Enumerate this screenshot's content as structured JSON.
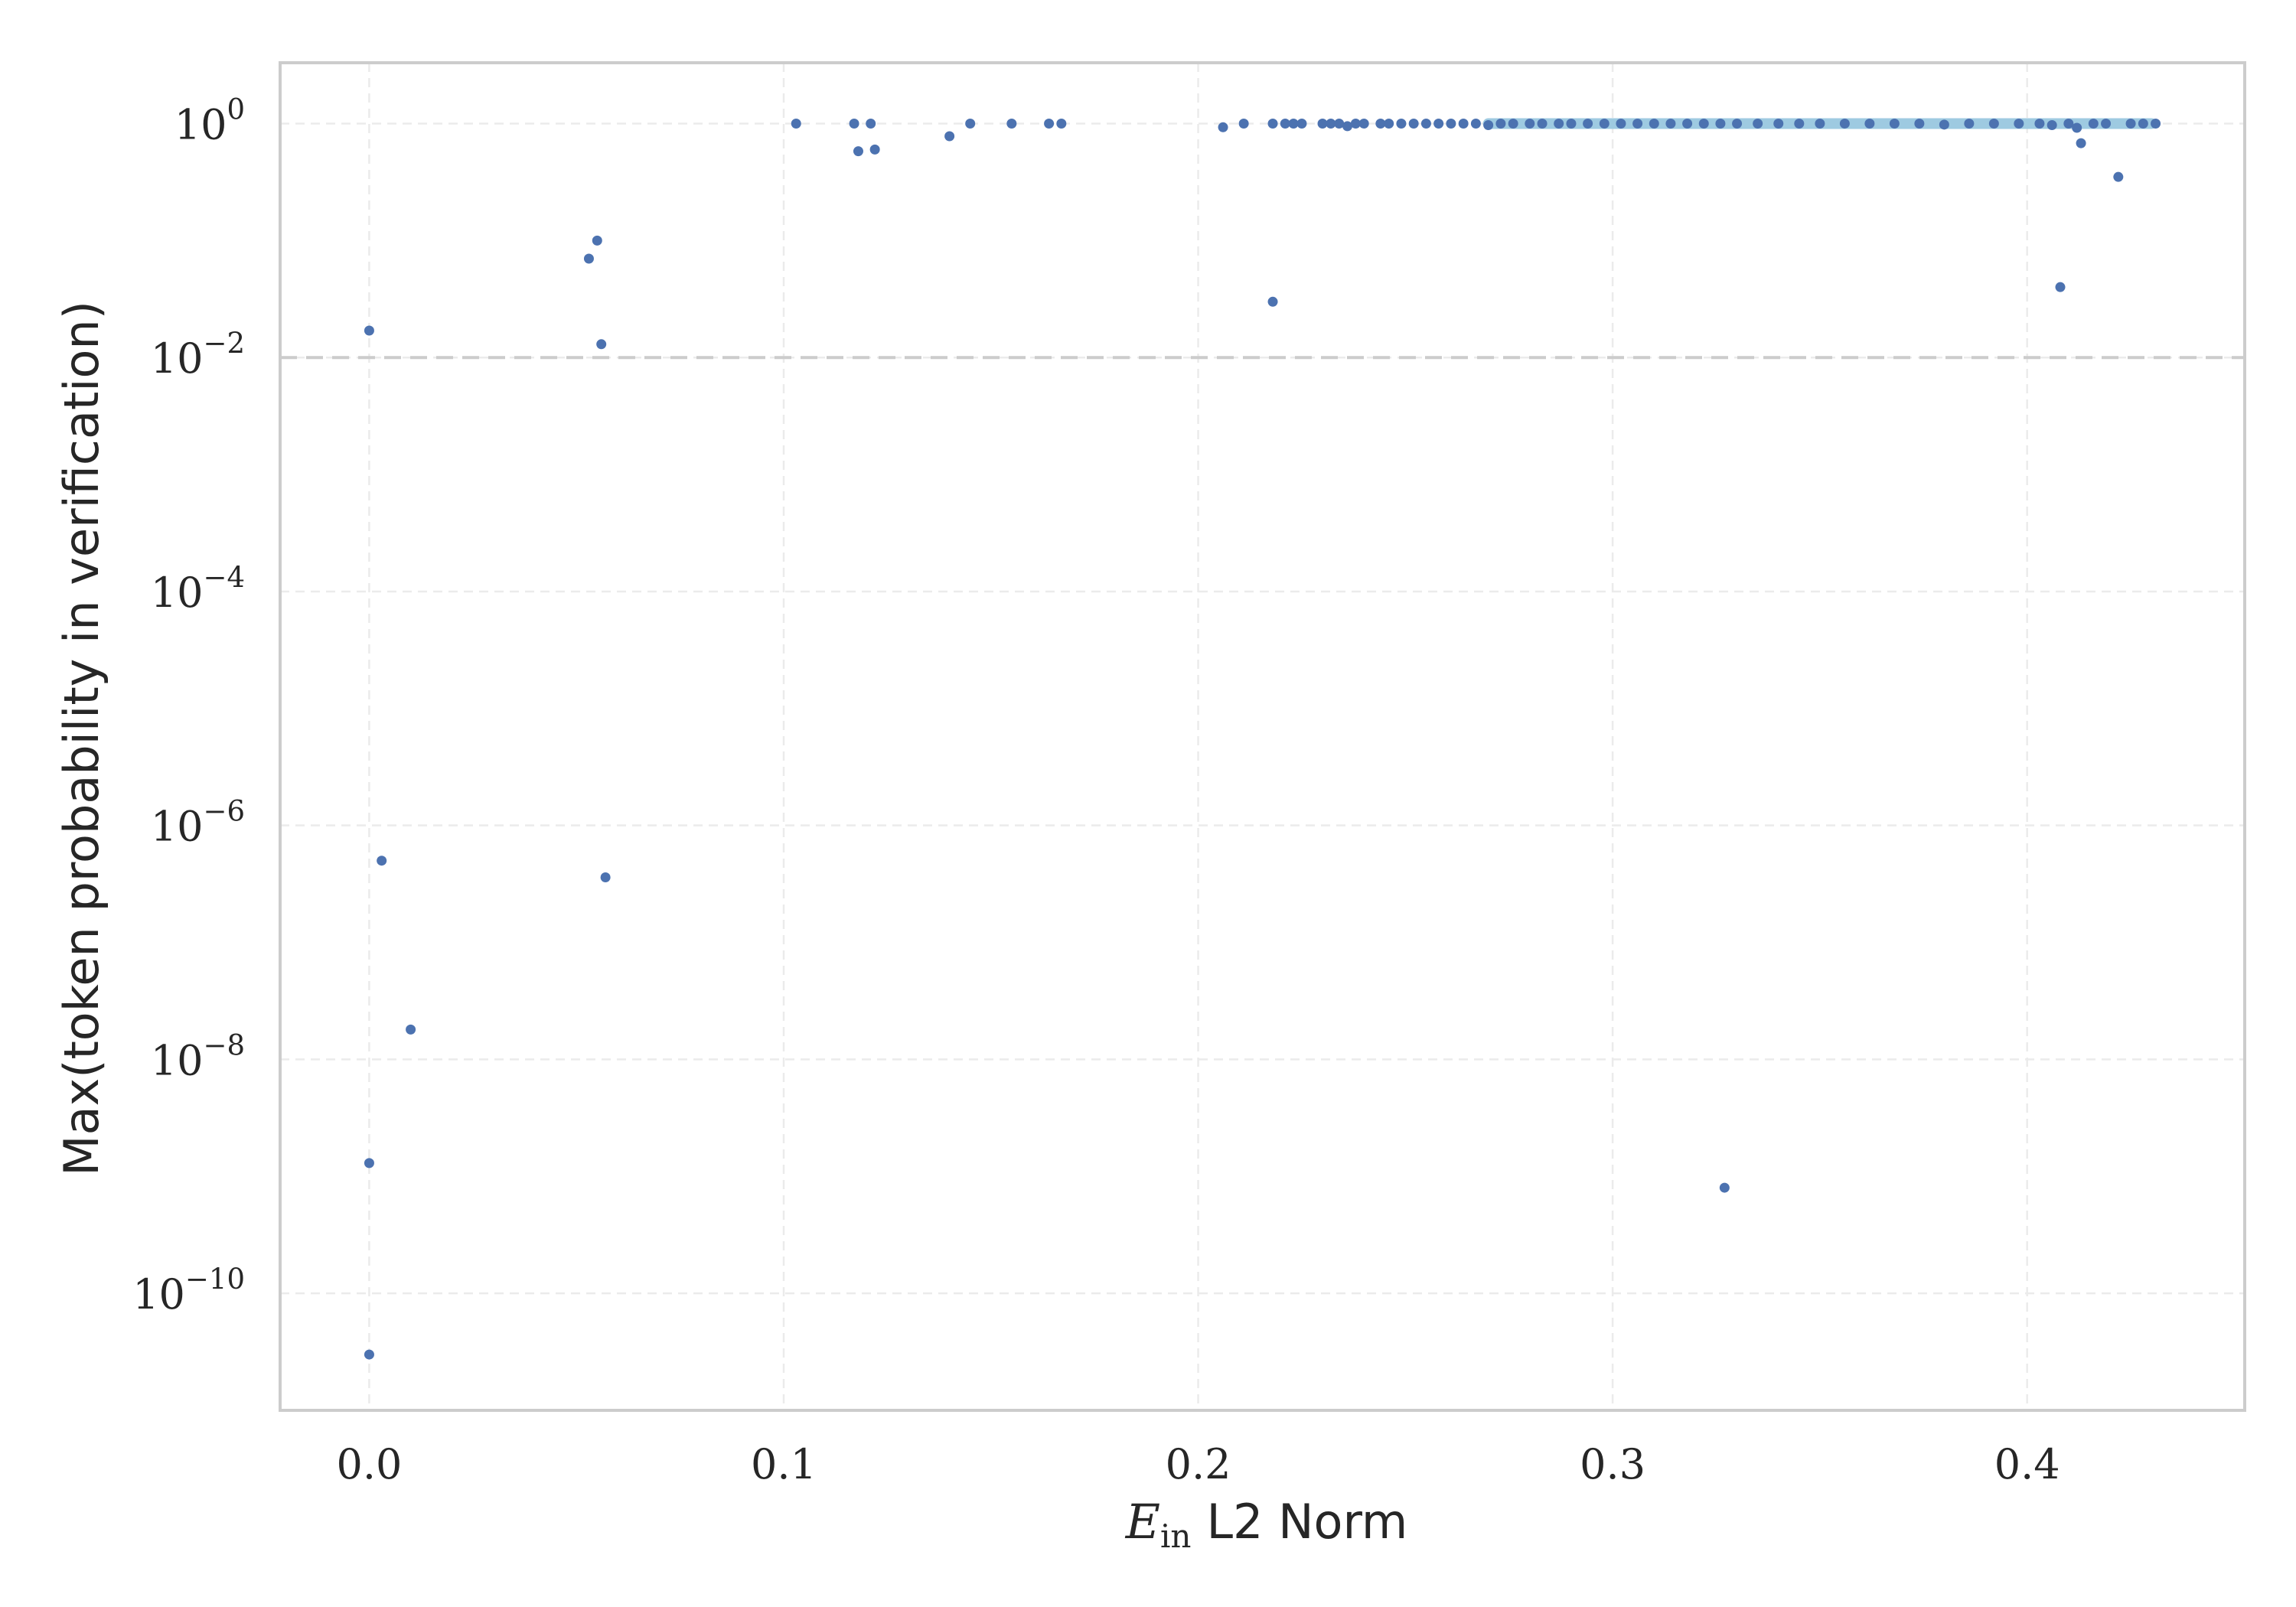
{
  "chart_data": {
    "type": "scatter",
    "title": "",
    "xlabel_math": "E",
    "xlabel_sub": "in",
    "xlabel_text": "L2 Norm",
    "ylabel": "Max(token probability in verification)",
    "xlim": [
      -0.0215,
      0.4525
    ],
    "ylim_log10": [
      -11.0,
      0.52
    ],
    "yscale": "log",
    "grid": true,
    "x_ticks": [
      "0.0",
      "0.1",
      "0.2",
      "0.3",
      "0.4"
    ],
    "x_tick_values": [
      0.0,
      0.1,
      0.2,
      0.3,
      0.4
    ],
    "y_tick_base": "10",
    "y_tick_exponents": [
      "−10",
      "−8",
      "−6",
      "−4",
      "−2",
      "0"
    ],
    "y_tick_values_log10": [
      -10,
      -8,
      -6,
      -4,
      -2,
      0
    ],
    "threshold_line": {
      "y": 0.01,
      "style": "dashed",
      "color": "#cccccc"
    },
    "colors": {
      "point": "#4c72b0",
      "dense_band": "#9ecae1",
      "axis": "#cccccc",
      "grid": "#ebebeb"
    },
    "dense_band": {
      "x_range": [
        0.27,
        0.43
      ],
      "y": 1.0
    },
    "series": [
      {
        "points": [
          [
            0.0,
            3e-11
          ],
          [
            0.0,
            1.3e-09
          ],
          [
            0.0,
            0.017
          ],
          [
            0.003,
            5e-07
          ],
          [
            0.01,
            1.8e-08
          ],
          [
            0.053,
            0.07
          ],
          [
            0.055,
            0.1
          ],
          [
            0.056,
            0.013
          ],
          [
            0.057,
            3.6e-07
          ],
          [
            0.103,
            1.0
          ],
          [
            0.117,
            1.0
          ],
          [
            0.118,
            0.58
          ],
          [
            0.121,
            1.0
          ],
          [
            0.122,
            0.6
          ],
          [
            0.14,
            0.78
          ],
          [
            0.145,
            1.0
          ],
          [
            0.155,
            1.0
          ],
          [
            0.164,
            1.0
          ],
          [
            0.167,
            1.0
          ],
          [
            0.206,
            0.93
          ],
          [
            0.211,
            1.0
          ],
          [
            0.218,
            1.0
          ],
          [
            0.218,
            0.03
          ],
          [
            0.221,
            1.0
          ],
          [
            0.223,
            1.0
          ],
          [
            0.225,
            1.0
          ],
          [
            0.23,
            1.0
          ],
          [
            0.232,
            1.0
          ],
          [
            0.234,
            1.0
          ],
          [
            0.236,
            0.95
          ],
          [
            0.238,
            1.0
          ],
          [
            0.24,
            1.0
          ],
          [
            0.244,
            1.0
          ],
          [
            0.246,
            1.0
          ],
          [
            0.249,
            1.0
          ],
          [
            0.252,
            1.0
          ],
          [
            0.255,
            1.0
          ],
          [
            0.258,
            1.0
          ],
          [
            0.261,
            1.0
          ],
          [
            0.264,
            1.0
          ],
          [
            0.267,
            1.0
          ],
          [
            0.27,
            0.97
          ],
          [
            0.273,
            1.0
          ],
          [
            0.276,
            1.0
          ],
          [
            0.28,
            1.0
          ],
          [
            0.283,
            1.0
          ],
          [
            0.287,
            1.0
          ],
          [
            0.29,
            1.0
          ],
          [
            0.294,
            1.0
          ],
          [
            0.298,
            1.0
          ],
          [
            0.302,
            1.0
          ],
          [
            0.306,
            1.0
          ],
          [
            0.31,
            1.0
          ],
          [
            0.314,
            1.0
          ],
          [
            0.318,
            1.0
          ],
          [
            0.322,
            1.0
          ],
          [
            0.326,
            1.0
          ],
          [
            0.327,
            8e-10
          ],
          [
            0.33,
            1.0
          ],
          [
            0.335,
            1.0
          ],
          [
            0.34,
            1.0
          ],
          [
            0.345,
            1.0
          ],
          [
            0.35,
            1.0
          ],
          [
            0.356,
            1.0
          ],
          [
            0.362,
            1.0
          ],
          [
            0.368,
            1.0
          ],
          [
            0.374,
            1.0
          ],
          [
            0.38,
            0.98
          ],
          [
            0.386,
            1.0
          ],
          [
            0.392,
            1.0
          ],
          [
            0.398,
            1.0
          ],
          [
            0.403,
            1.0
          ],
          [
            0.406,
            0.97
          ],
          [
            0.408,
            0.04
          ],
          [
            0.41,
            1.0
          ],
          [
            0.412,
            0.92
          ],
          [
            0.413,
            0.68
          ],
          [
            0.416,
            1.0
          ],
          [
            0.419,
            1.0
          ],
          [
            0.422,
            0.35
          ],
          [
            0.425,
            1.0
          ],
          [
            0.428,
            1.0
          ],
          [
            0.431,
            1.0
          ]
        ]
      }
    ]
  }
}
